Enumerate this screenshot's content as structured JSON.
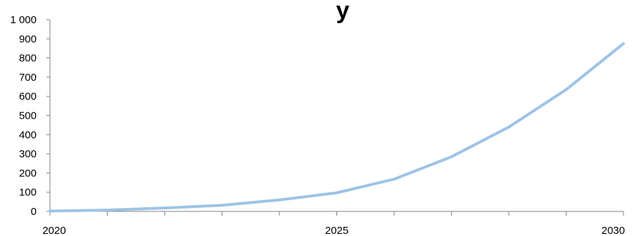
{
  "chart_data": {
    "type": "line",
    "title": "y",
    "x": [
      2020,
      2021,
      2022,
      2023,
      2024,
      2025,
      2026,
      2027,
      2028,
      2029,
      2030
    ],
    "series": [
      {
        "color": "#9dc3e6",
        "values": [
          2,
          7,
          18,
          32,
          60,
          97,
          168,
          285,
          440,
          635,
          875
        ]
      }
    ],
    "xlim": [
      2020,
      2030
    ],
    "ylim": [
      0,
      1000
    ],
    "x_ticks": [
      2020,
      2021,
      2022,
      2023,
      2024,
      2025,
      2026,
      2027,
      2028,
      2029,
      2030
    ],
    "x_tick_labels": [
      "2020",
      "2025",
      "2030"
    ],
    "y_ticks": [
      0,
      100,
      200,
      300,
      400,
      500,
      600,
      700,
      800,
      900,
      1000
    ],
    "y_tick_labels": [
      "0",
      "100",
      "200",
      "300",
      "400",
      "500",
      "600",
      "700",
      "800",
      "900",
      "1 000"
    ],
    "grid": false,
    "legend": "none",
    "axis_color": "#808080"
  }
}
